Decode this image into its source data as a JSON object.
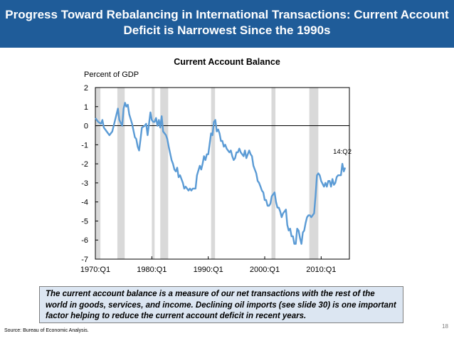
{
  "slide": {
    "title_line1": "Progress Toward Rebalancing in International Transactions: Current Account",
    "title_line2": "Deficit is Narrowest Since the 1990s",
    "note": "The current account balance is a measure of our net transactions with the rest of the world in goods, services, and income. Declining oil imports (see slide 30) is one important factor helping to reduce the current account deficit in recent years.",
    "source": "Source: Bureau of Economic Analysis.",
    "page_number": "18"
  },
  "colors": {
    "header_bg": "#1f5c99",
    "line": "#5b9bd5",
    "recession_shading": "#d9d9d9",
    "note_bg": "#dce6f2"
  },
  "chart_data": {
    "type": "line",
    "title": "Current Account Balance",
    "ylabel": "Percent of GDP",
    "ylim": [
      -7,
      2
    ],
    "yticks": [
      2,
      1,
      0,
      -1,
      -2,
      -3,
      -4,
      -5,
      -6,
      -7
    ],
    "xlim": [
      1970.0,
      2015.0
    ],
    "xticks": [
      {
        "x": 1970.0,
        "label": "1970:Q1"
      },
      {
        "x": 1980.0,
        "label": "1980:Q1"
      },
      {
        "x": 1990.0,
        "label": "1990:Q1"
      },
      {
        "x": 2000.0,
        "label": "2000:Q1"
      },
      {
        "x": 2010.0,
        "label": "2010:Q1"
      }
    ],
    "recessions": [
      [
        1970.0,
        1970.9
      ],
      [
        1973.9,
        1975.2
      ],
      [
        1980.0,
        1980.5
      ],
      [
        1981.5,
        1982.9
      ],
      [
        1990.5,
        1991.2
      ],
      [
        2001.2,
        2001.9
      ],
      [
        2007.9,
        2009.5
      ]
    ],
    "annotation": {
      "label": "14:Q2",
      "x": 2014.25,
      "y": -2.0
    },
    "grid": false,
    "series": [
      {
        "values": [
          [
            1970.0,
            0.4
          ],
          [
            1970.5,
            0.2
          ],
          [
            1971.0,
            0.1
          ],
          [
            1971.25,
            0.3
          ],
          [
            1971.5,
            -0.1
          ],
          [
            1972.0,
            -0.3
          ],
          [
            1972.5,
            -0.5
          ],
          [
            1973.0,
            -0.3
          ],
          [
            1973.5,
            0.3
          ],
          [
            1974.0,
            0.9
          ],
          [
            1974.25,
            0.3
          ],
          [
            1974.75,
            0.0
          ],
          [
            1975.0,
            0.9
          ],
          [
            1975.25,
            1.2
          ],
          [
            1975.5,
            1.0
          ],
          [
            1975.75,
            1.1
          ],
          [
            1976.0,
            0.6
          ],
          [
            1976.5,
            0.1
          ],
          [
            1977.0,
            -0.6
          ],
          [
            1977.25,
            -0.7
          ],
          [
            1977.5,
            -1.1
          ],
          [
            1977.75,
            -1.3
          ],
          [
            1978.0,
            -0.7
          ],
          [
            1978.25,
            -0.1
          ],
          [
            1978.75,
            0.0
          ],
          [
            1979.0,
            0.1
          ],
          [
            1979.25,
            -0.5
          ],
          [
            1979.75,
            0.7
          ],
          [
            1980.0,
            0.3
          ],
          [
            1980.25,
            0.2
          ],
          [
            1980.5,
            0.2
          ],
          [
            1980.75,
            0.4
          ],
          [
            1981.0,
            0.0
          ],
          [
            1981.25,
            0.3
          ],
          [
            1981.5,
            -0.1
          ],
          [
            1981.75,
            0.5
          ],
          [
            1982.0,
            -0.3
          ],
          [
            1982.5,
            -0.5
          ],
          [
            1982.75,
            -0.7
          ],
          [
            1983.0,
            -1.1
          ],
          [
            1983.5,
            -1.8
          ],
          [
            1983.75,
            -2.0
          ],
          [
            1984.0,
            -2.3
          ],
          [
            1984.25,
            -2.4
          ],
          [
            1984.5,
            -2.2
          ],
          [
            1984.75,
            -2.7
          ],
          [
            1985.0,
            -2.6
          ],
          [
            1985.5,
            -3.0
          ],
          [
            1985.75,
            -3.3
          ],
          [
            1986.0,
            -3.2
          ],
          [
            1986.5,
            -3.4
          ],
          [
            1986.75,
            -3.3
          ],
          [
            1987.0,
            -3.4
          ],
          [
            1987.25,
            -3.3
          ],
          [
            1987.75,
            -3.3
          ],
          [
            1988.0,
            -2.6
          ],
          [
            1988.5,
            -2.1
          ],
          [
            1988.75,
            -2.3
          ],
          [
            1989.0,
            -2.0
          ],
          [
            1989.25,
            -1.6
          ],
          [
            1989.5,
            -1.8
          ],
          [
            1989.75,
            -1.5
          ],
          [
            1990.0,
            -1.5
          ],
          [
            1990.5,
            -0.4
          ],
          [
            1990.75,
            -0.5
          ],
          [
            1991.0,
            0.2
          ],
          [
            1991.25,
            0.3
          ],
          [
            1991.5,
            -0.3
          ],
          [
            1991.75,
            -0.2
          ],
          [
            1992.0,
            -0.4
          ],
          [
            1992.25,
            -0.8
          ],
          [
            1992.5,
            -0.8
          ],
          [
            1992.75,
            -1.1
          ],
          [
            1993.0,
            -1.0
          ],
          [
            1993.25,
            -1.2
          ],
          [
            1993.5,
            -1.3
          ],
          [
            1993.75,
            -1.4
          ],
          [
            1994.0,
            -1.3
          ],
          [
            1994.25,
            -1.6
          ],
          [
            1994.5,
            -1.8
          ],
          [
            1994.75,
            -1.7
          ],
          [
            1995.0,
            -1.4
          ],
          [
            1995.25,
            -1.4
          ],
          [
            1995.5,
            -1.2
          ],
          [
            1995.75,
            -1.4
          ],
          [
            1996.0,
            -1.5
          ],
          [
            1996.25,
            -1.6
          ],
          [
            1996.5,
            -1.3
          ],
          [
            1996.75,
            -1.7
          ],
          [
            1997.0,
            -1.5
          ],
          [
            1997.25,
            -1.3
          ],
          [
            1997.5,
            -1.5
          ],
          [
            1997.75,
            -1.6
          ],
          [
            1998.0,
            -2.1
          ],
          [
            1998.5,
            -2.5
          ],
          [
            1998.75,
            -2.9
          ],
          [
            1999.0,
            -3.0
          ],
          [
            1999.25,
            -3.2
          ],
          [
            1999.5,
            -3.4
          ],
          [
            1999.75,
            -3.5
          ],
          [
            2000.0,
            -3.9
          ],
          [
            2000.25,
            -3.9
          ],
          [
            2000.5,
            -4.2
          ],
          [
            2000.75,
            -4.2
          ],
          [
            2001.0,
            -4.1
          ],
          [
            2001.25,
            -3.7
          ],
          [
            2001.5,
            -3.6
          ],
          [
            2001.75,
            -3.5
          ],
          [
            2002.0,
            -4.0
          ],
          [
            2002.25,
            -4.3
          ],
          [
            2002.5,
            -4.3
          ],
          [
            2002.75,
            -4.5
          ],
          [
            2003.0,
            -4.8
          ],
          [
            2003.25,
            -4.6
          ],
          [
            2003.5,
            -4.5
          ],
          [
            2003.75,
            -4.4
          ],
          [
            2004.0,
            -5.2
          ],
          [
            2004.25,
            -5.5
          ],
          [
            2004.5,
            -5.4
          ],
          [
            2004.75,
            -5.8
          ],
          [
            2005.0,
            -5.8
          ],
          [
            2005.25,
            -6.2
          ],
          [
            2005.5,
            -6.2
          ],
          [
            2005.75,
            -5.4
          ],
          [
            2006.0,
            -5.5
          ],
          [
            2006.25,
            -5.9
          ],
          [
            2006.5,
            -6.2
          ],
          [
            2006.75,
            -5.6
          ],
          [
            2007.0,
            -5.5
          ],
          [
            2007.25,
            -5.1
          ],
          [
            2007.5,
            -4.8
          ],
          [
            2007.75,
            -4.7
          ],
          [
            2008.0,
            -4.7
          ],
          [
            2008.25,
            -4.8
          ],
          [
            2008.5,
            -4.7
          ],
          [
            2008.75,
            -4.6
          ],
          [
            2009.0,
            -3.7
          ],
          [
            2009.25,
            -2.6
          ],
          [
            2009.5,
            -2.5
          ],
          [
            2009.75,
            -2.6
          ],
          [
            2010.0,
            -2.9
          ],
          [
            2010.5,
            -3.2
          ],
          [
            2010.75,
            -3.0
          ],
          [
            2011.0,
            -3.2
          ],
          [
            2011.25,
            -2.9
          ],
          [
            2011.5,
            -2.9
          ],
          [
            2011.75,
            -3.2
          ],
          [
            2012.0,
            -2.8
          ],
          [
            2012.25,
            -3.1
          ],
          [
            2012.5,
            -3.0
          ],
          [
            2012.75,
            -2.7
          ],
          [
            2013.0,
            -2.6
          ],
          [
            2013.5,
            -2.6
          ],
          [
            2013.75,
            -2.0
          ],
          [
            2014.0,
            -2.4
          ],
          [
            2014.25,
            -2.2
          ]
        ]
      }
    ]
  }
}
